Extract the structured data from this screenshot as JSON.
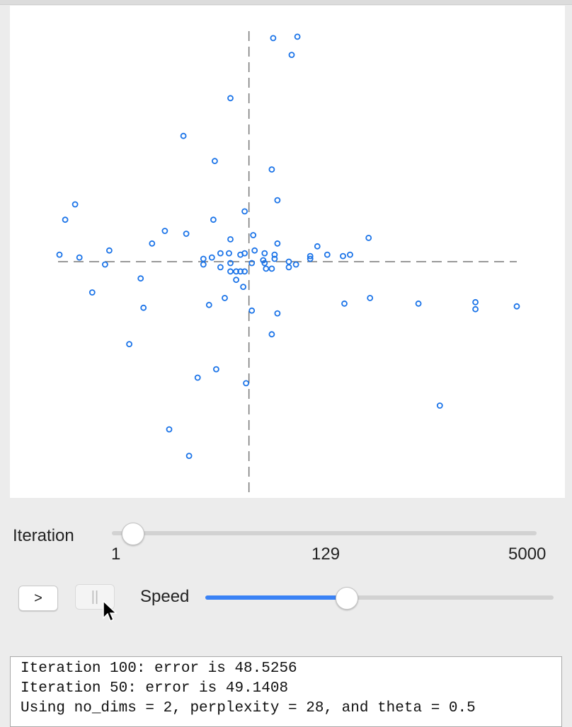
{
  "chart_data": {
    "type": "scatter",
    "title": "",
    "xlabel": "",
    "ylabel": "",
    "xlim": [
      -13.4,
      18.8
    ],
    "ylim": [
      -16.5,
      16.5
    ],
    "grid": false,
    "axis_lines": "dashed through origin",
    "marker": "hollow circle",
    "marker_color": "#1a73e8",
    "points": [
      [
        1.7,
        16.0
      ],
      [
        3.4,
        16.1
      ],
      [
        3.0,
        14.8
      ],
      [
        -1.3,
        11.7
      ],
      [
        -4.6,
        9.0
      ],
      [
        -2.4,
        7.2
      ],
      [
        1.6,
        6.6
      ],
      [
        2.0,
        4.4
      ],
      [
        -0.3,
        3.6
      ],
      [
        -12.2,
        4.1
      ],
      [
        -12.9,
        3.0
      ],
      [
        -5.9,
        2.2
      ],
      [
        -4.4,
        2.0
      ],
      [
        -2.5,
        3.0
      ],
      [
        -1.3,
        1.6
      ],
      [
        0.3,
        1.9
      ],
      [
        2.0,
        1.3
      ],
      [
        -6.8,
        1.3
      ],
      [
        -9.8,
        0.8
      ],
      [
        -13.3,
        0.5
      ],
      [
        -11.9,
        0.3
      ],
      [
        -10.1,
        -0.2
      ],
      [
        -3.2,
        0.2
      ],
      [
        -2.6,
        0.3
      ],
      [
        -2.0,
        0.6
      ],
      [
        -1.4,
        0.6
      ],
      [
        -0.6,
        0.5
      ],
      [
        -0.3,
        0.6
      ],
      [
        0.4,
        0.8
      ],
      [
        1.1,
        0.6
      ],
      [
        1.8,
        0.5
      ],
      [
        1.8,
        0.2
      ],
      [
        1.0,
        0.1
      ],
      [
        1.1,
        -0.1
      ],
      [
        2.8,
        0.0
      ],
      [
        2.8,
        -0.4
      ],
      [
        3.3,
        -0.2
      ],
      [
        4.3,
        0.4
      ],
      [
        4.3,
        0.2
      ],
      [
        4.8,
        1.1
      ],
      [
        5.5,
        0.5
      ],
      [
        6.6,
        0.4
      ],
      [
        7.1,
        0.5
      ],
      [
        8.4,
        1.7
      ],
      [
        -3.2,
        -0.2
      ],
      [
        -2.0,
        -0.4
      ],
      [
        -1.3,
        -0.1
      ],
      [
        -1.3,
        -0.7
      ],
      [
        -0.9,
        -0.7
      ],
      [
        -0.6,
        -0.7
      ],
      [
        -0.3,
        -0.7
      ],
      [
        0.2,
        -0.1
      ],
      [
        1.2,
        -0.5
      ],
      [
        1.6,
        -0.5
      ],
      [
        -7.6,
        -1.2
      ],
      [
        -11.0,
        -2.2
      ],
      [
        -0.9,
        -1.3
      ],
      [
        -0.4,
        -1.8
      ],
      [
        -1.7,
        -2.6
      ],
      [
        -7.4,
        -3.3
      ],
      [
        -2.8,
        -3.1
      ],
      [
        0.2,
        -3.5
      ],
      [
        2.0,
        -3.7
      ],
      [
        1.6,
        -5.2
      ],
      [
        6.7,
        -3.0
      ],
      [
        8.5,
        -2.6
      ],
      [
        11.9,
        -3.0
      ],
      [
        15.9,
        -2.9
      ],
      [
        15.9,
        -3.4
      ],
      [
        18.8,
        -3.2
      ],
      [
        -8.4,
        -5.9
      ],
      [
        -2.3,
        -7.7
      ],
      [
        -3.6,
        -8.3
      ],
      [
        -0.2,
        -8.7
      ],
      [
        13.4,
        -10.3
      ],
      [
        -5.6,
        -12.0
      ],
      [
        -4.2,
        -13.9
      ]
    ]
  },
  "controls": {
    "iteration_label": "Iteration",
    "iteration_min": "1",
    "iteration_current_label": "129",
    "iteration_max": "5000",
    "iteration_value": 0.005,
    "play_label": ">",
    "pause_label": "||",
    "speed_label": "Speed",
    "speed_value": 0.41
  },
  "log": {
    "lines": [
      "Iteration 100: error is 48.5256",
      "Iteration 50: error is 49.1408",
      "Using no_dims = 2, perplexity = 28, and theta = 0.5"
    ]
  }
}
